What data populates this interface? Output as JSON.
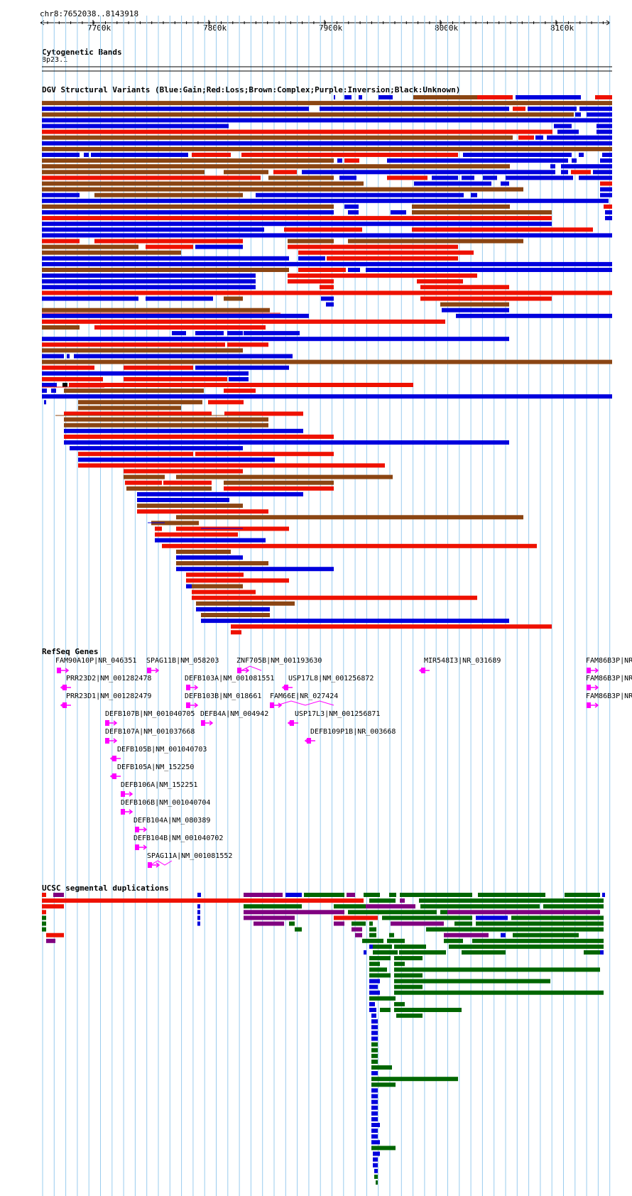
{
  "coordinates": "chr8:7652038..8143918",
  "ruler_ticks": [
    "7700k",
    "7800k",
    "7900k",
    "8000k",
    "8100k"
  ],
  "tracks": {
    "cytoband": {
      "title": "Cytogenetic Bands",
      "band": "8p23.1"
    },
    "dgv": {
      "title": "DGV Structural Variants (Blue:Gain;Red:Loss;Brown:Complex;Purple:Inversion;Black:Unknown)"
    },
    "refseq": {
      "title": "RefSeq Genes"
    },
    "segdup": {
      "title": "UCSC segmental duplications"
    }
  },
  "genes": [
    "FAM90A10P|NR_046351",
    "SPAG11B|NM_058203",
    "ZNF705B|NM_001193630",
    "MIR548I3|NR_031689",
    "FAM86B3P|NR_",
    "PRR23D2|NM_001282478",
    "DEFB103A|NM_001081551",
    "USP17L8|NM_001256872",
    "FAM86B3P|NR_",
    "PRR23D1|NM_001282479",
    "DEFB103B|NM_018661",
    "FAM66E|NR_027424",
    "FAM86B3P|NR_",
    "DEFB107B|NM_001040705",
    "DEFB4A|NM_004942",
    "USP17L3|NM_001256871",
    "DEFB107A|NM_001037668",
    "DEFB109P1B|NR_003668",
    "DEFB105B|NM_001040703",
    "DEFB105A|NM_152250",
    "DEFB106A|NM_152251",
    "DEFB106B|NM_001040704",
    "DEFB104A|NM_080389",
    "DEFB104B|NM_001040702",
    "SPAG11A|NM_001081552"
  ],
  "colors": {
    "gain": "#0000dd",
    "loss": "#ee1100",
    "complex": "#8b4513",
    "inversion": "#800080",
    "segdup_green": "#006600",
    "gene": "#ff00ff",
    "grid": "#99ccee"
  }
}
